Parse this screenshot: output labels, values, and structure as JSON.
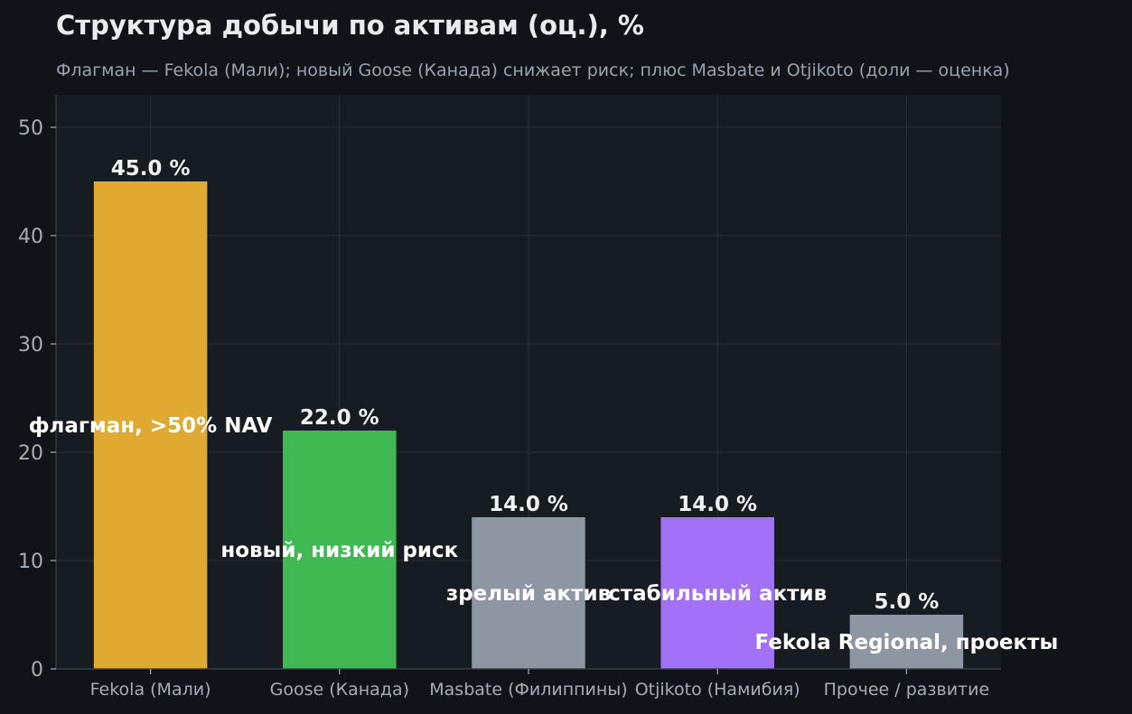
{
  "chart_data": {
    "type": "bar",
    "title": "Структура добычи по активам (оц.), %",
    "subtitle": "Флагман — Fekola (Мали); новый Goose (Канада) снижает риск; плюс Masbate и Otjikoto (доли — оценка)",
    "categories": [
      "Fekola (Мали)",
      "Goose (Канада)",
      "Masbate (Филиппины)",
      "Otjikoto (Намибия)",
      "Прочее / развитие"
    ],
    "values": [
      45.0,
      22.0,
      14.0,
      14.0,
      5.0
    ],
    "value_labels": [
      "45.0 %",
      "22.0 %",
      "14.0 %",
      "14.0 %",
      "5.0 %"
    ],
    "annotations": [
      "флагман, >50% NAV",
      "новый, низкий риск",
      "зрелый актив",
      "стабильный актив",
      "Fekola Regional, проекты"
    ],
    "annotation_values": [
      22.5,
      11.0,
      7.0,
      7.0,
      2.5
    ],
    "colors": [
      "#e0a932",
      "#41b953",
      "#8d96a2",
      "#a271f5",
      "#8d96a2"
    ],
    "xlabel": "",
    "ylabel": "",
    "ylim": [
      0,
      53
    ],
    "yticks": [
      0,
      10,
      20,
      30,
      40,
      50
    ],
    "grid": true,
    "background": "#171b22",
    "page_background": "#101418"
  }
}
